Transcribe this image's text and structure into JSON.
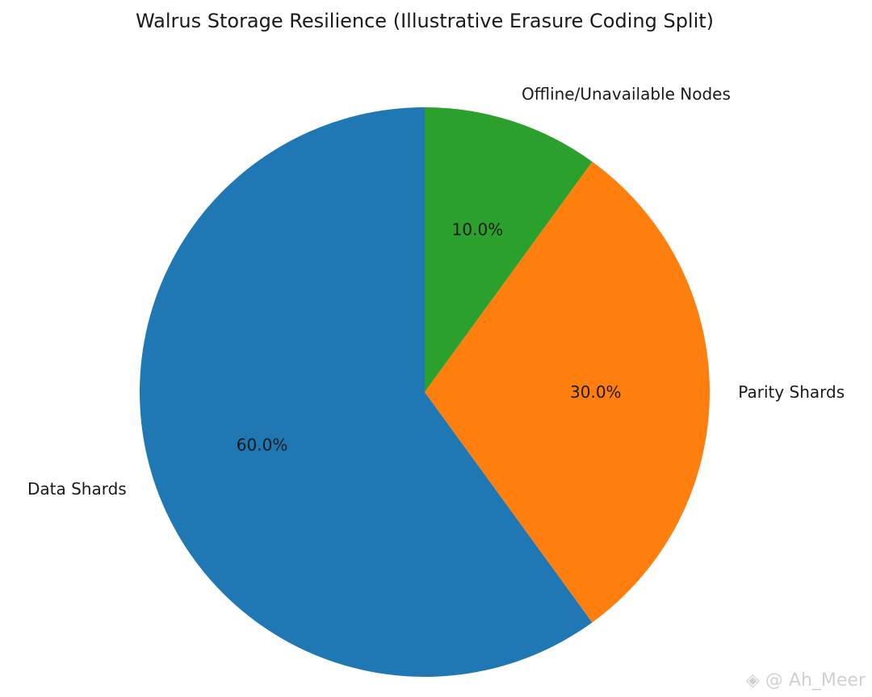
{
  "chart_data": {
    "type": "pie",
    "title": "Walrus Storage Resilience (Illustrative Erasure Coding Split)",
    "categories": [
      "Data Shards",
      "Parity Shards",
      "Offline/Unavailable Nodes"
    ],
    "values": [
      60,
      30,
      10
    ],
    "percent_labels": [
      "60.0%",
      "30.0%",
      "10.0%"
    ],
    "colors": [
      "#1f77b4",
      "#ff7f0e",
      "#2ca02c"
    ],
    "start_angle": 90,
    "direction": "counterclockwise"
  },
  "watermark": {
    "text": "@ Ah_Meer",
    "icon": "binance-logo-icon"
  }
}
